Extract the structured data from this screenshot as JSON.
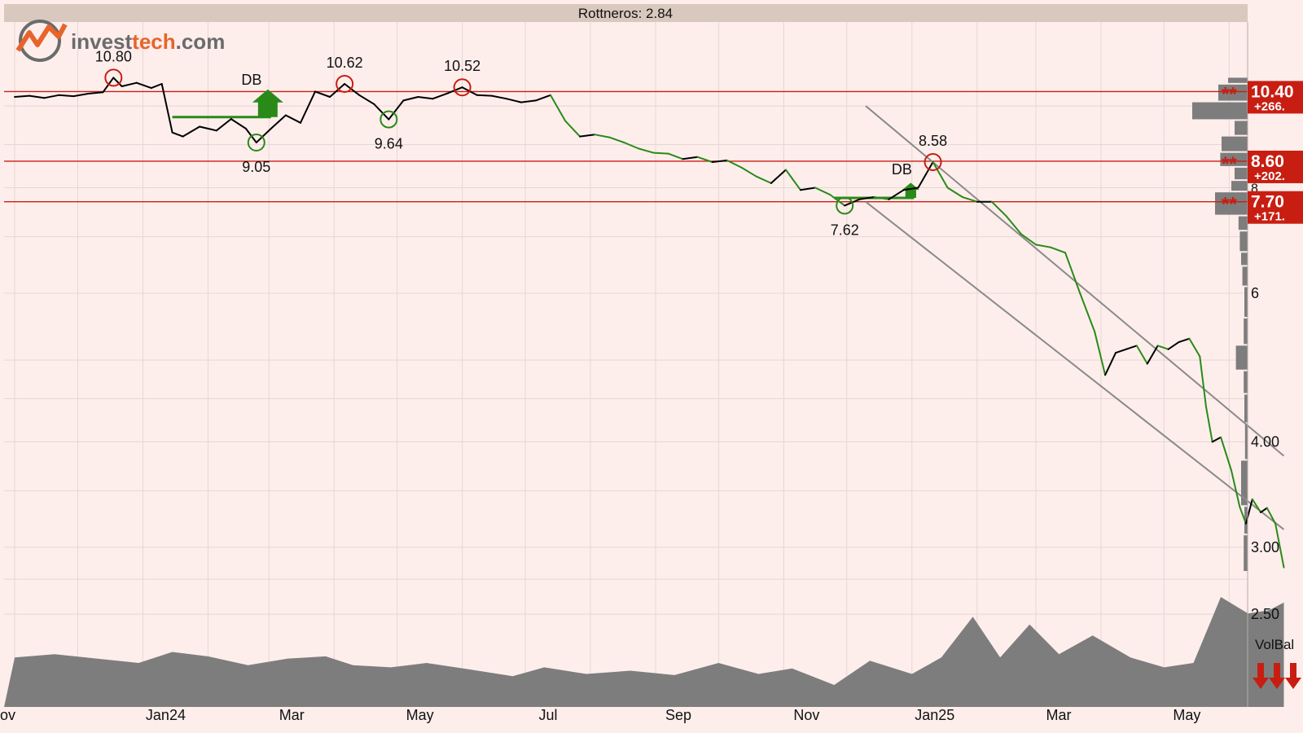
{
  "window": {
    "title": "Rottneros: 2.84",
    "logo_text_a": "invest",
    "logo_text_b": "tech",
    "logo_text_c": ".com",
    "volbal_label": "VolBal"
  },
  "colors": {
    "background": "#fdeeec",
    "title_bar": "#d9c8bd",
    "grid": "#e6d6d4",
    "price_up": "#000000",
    "price_down": "#2a8a18",
    "resistance": "#c81e12",
    "support_green": "#2a8a18",
    "channel": "#8a8a8a",
    "volume_fill": "#7d7d7d",
    "badge_red": "#c81e12",
    "logo_orange": "#e8642a",
    "logo_grey": "#6b6b6b"
  },
  "chart_data": {
    "type": "line",
    "title": "Rottneros: 2.84",
    "y_scale": "log",
    "y_ticks": [
      "6",
      "4.00",
      "3.00",
      "2.50"
    ],
    "y_tick_values": [
      6,
      4,
      3,
      2.5
    ],
    "partial_y_tick": "8",
    "x_ticks": [
      "ov",
      "Jan24",
      "Mar",
      "May",
      "Jul",
      "Sep",
      "Nov",
      "Jan25",
      "Mar",
      "May"
    ],
    "series": [
      {
        "values": [
          [
            "2023-11-01",
            10.25
          ],
          [
            "2023-11-08",
            10.28
          ],
          [
            "2023-11-15",
            10.22
          ],
          [
            "2023-11-22",
            10.3
          ],
          [
            "2023-11-29",
            10.27
          ],
          [
            "2023-12-06",
            10.34
          ],
          [
            "2023-12-13",
            10.38
          ],
          [
            "2023-12-18",
            10.8
          ],
          [
            "2023-12-22",
            10.55
          ],
          [
            "2023-12-29",
            10.65
          ],
          [
            "2024-01-05",
            10.5
          ],
          [
            "2024-01-10",
            10.62
          ],
          [
            "2024-01-15",
            9.3
          ],
          [
            "2024-01-20",
            9.2
          ],
          [
            "2024-01-28",
            9.45
          ],
          [
            "2024-02-05",
            9.35
          ],
          [
            "2024-02-12",
            9.65
          ],
          [
            "2024-02-19",
            9.4
          ],
          [
            "2024-02-24",
            9.05
          ],
          [
            "2024-03-02",
            9.4
          ],
          [
            "2024-03-09",
            9.75
          ],
          [
            "2024-03-16",
            9.55
          ],
          [
            "2024-03-23",
            10.4
          ],
          [
            "2024-03-30",
            10.25
          ],
          [
            "2024-04-06",
            10.62
          ],
          [
            "2024-04-13",
            10.3
          ],
          [
            "2024-04-20",
            10.05
          ],
          [
            "2024-04-27",
            9.64
          ],
          [
            "2024-05-04",
            10.15
          ],
          [
            "2024-05-11",
            10.25
          ],
          [
            "2024-05-18",
            10.2
          ],
          [
            "2024-05-25",
            10.35
          ],
          [
            "2024-06-01",
            10.52
          ],
          [
            "2024-06-08",
            10.3
          ],
          [
            "2024-06-15",
            10.28
          ],
          [
            "2024-06-22",
            10.2
          ],
          [
            "2024-06-29",
            10.1
          ],
          [
            "2024-07-06",
            10.15
          ],
          [
            "2024-07-13",
            10.3
          ],
          [
            "2024-07-20",
            9.6
          ],
          [
            "2024-07-27",
            9.2
          ],
          [
            "2024-08-03",
            9.25
          ],
          [
            "2024-08-10",
            9.18
          ],
          [
            "2024-08-17",
            9.05
          ],
          [
            "2024-08-24",
            8.9
          ],
          [
            "2024-08-31",
            8.8
          ],
          [
            "2024-09-07",
            8.78
          ],
          [
            "2024-09-14",
            8.65
          ],
          [
            "2024-09-21",
            8.7
          ],
          [
            "2024-09-28",
            8.58
          ],
          [
            "2024-10-05",
            8.62
          ],
          [
            "2024-10-12",
            8.45
          ],
          [
            "2024-10-19",
            8.25
          ],
          [
            "2024-10-26",
            8.1
          ],
          [
            "2024-11-02",
            8.4
          ],
          [
            "2024-11-09",
            7.95
          ],
          [
            "2024-11-16",
            8.0
          ],
          [
            "2024-11-23",
            7.85
          ],
          [
            "2024-11-30",
            7.62
          ],
          [
            "2024-12-07",
            7.75
          ],
          [
            "2024-12-14",
            7.8
          ],
          [
            "2024-12-21",
            7.75
          ],
          [
            "2024-12-28",
            7.95
          ],
          [
            "2025-01-04",
            8.0
          ],
          [
            "2025-01-11",
            8.58
          ],
          [
            "2025-01-18",
            8.0
          ],
          [
            "2025-01-25",
            7.8
          ],
          [
            "2025-02-01",
            7.7
          ],
          [
            "2025-02-08",
            7.7
          ],
          [
            "2025-02-15",
            7.4
          ],
          [
            "2025-02-22",
            7.05
          ],
          [
            "2025-03-01",
            6.85
          ],
          [
            "2025-03-08",
            6.8
          ],
          [
            "2025-03-15",
            6.7
          ],
          [
            "2025-03-22",
            6.0
          ],
          [
            "2025-03-29",
            5.4
          ],
          [
            "2025-04-03",
            4.8
          ],
          [
            "2025-04-08",
            5.1
          ],
          [
            "2025-04-13",
            5.15
          ],
          [
            "2025-04-18",
            5.2
          ],
          [
            "2025-04-23",
            4.95
          ],
          [
            "2025-04-28",
            5.2
          ],
          [
            "2025-05-03",
            5.15
          ],
          [
            "2025-05-08",
            5.25
          ],
          [
            "2025-05-13",
            5.3
          ],
          [
            "2025-05-18",
            5.05
          ],
          [
            "2025-05-21",
            4.4
          ],
          [
            "2025-05-24",
            4.0
          ],
          [
            "2025-05-28",
            4.05
          ],
          [
            "2025-06-02",
            3.7
          ],
          [
            "2025-06-06",
            3.35
          ],
          [
            "2025-06-09",
            3.2
          ],
          [
            "2025-06-12",
            3.42
          ],
          [
            "2025-06-16",
            3.3
          ],
          [
            "2025-06-19",
            3.34
          ],
          [
            "2025-06-23",
            3.2
          ],
          [
            "2025-06-27",
            2.84
          ]
        ]
      }
    ],
    "peaks": [
      {
        "date": "2023-12-18",
        "value": 10.8,
        "label": "10.80"
      },
      {
        "date": "2024-04-06",
        "value": 10.62,
        "label": "10.62"
      },
      {
        "date": "2024-06-01",
        "value": 10.52,
        "label": "10.52"
      },
      {
        "date": "2025-01-11",
        "value": 8.58,
        "label": "8.58"
      }
    ],
    "troughs": [
      {
        "date": "2024-02-24",
        "value": 9.05,
        "label": "9.05"
      },
      {
        "date": "2024-04-27",
        "value": 9.64,
        "label": "9.64"
      },
      {
        "date": "2024-11-30",
        "value": 7.62,
        "label": "7.62"
      }
    ],
    "patterns": [
      {
        "label": "DB",
        "start": "2024-01-15",
        "end": "2024-03-02",
        "value": 9.7
      },
      {
        "label": "DB",
        "start": "2024-11-25",
        "end": "2025-01-02",
        "value": 7.78
      }
    ],
    "resistance_levels": [
      {
        "value": 10.4,
        "label": "10.40",
        "change": "+266."
      },
      {
        "value": 8.6,
        "label": "8.60",
        "change": "+202."
      },
      {
        "value": 7.7,
        "label": "7.70",
        "change": "+171."
      }
    ],
    "trend_channel": {
      "upper": [
        [
          "2024-12-10",
          10.0
        ],
        [
          "2025-06-27",
          3.85
        ]
      ],
      "lower": [
        [
          "2024-12-10",
          7.7
        ],
        [
          "2025-06-27",
          3.15
        ]
      ]
    },
    "volume_balance": {
      "label": "VolBal",
      "values": [
        [
          "2023-11-01",
          0.45
        ],
        [
          "2023-11-20",
          0.48
        ],
        [
          "2023-12-10",
          0.44
        ],
        [
          "2023-12-30",
          0.4
        ],
        [
          "2024-01-15",
          0.5
        ],
        [
          "2024-02-01",
          0.46
        ],
        [
          "2024-02-20",
          0.38
        ],
        [
          "2024-03-10",
          0.44
        ],
        [
          "2024-03-28",
          0.46
        ],
        [
          "2024-04-10",
          0.38
        ],
        [
          "2024-04-28",
          0.36
        ],
        [
          "2024-05-15",
          0.4
        ],
        [
          "2024-06-05",
          0.34
        ],
        [
          "2024-06-25",
          0.28
        ],
        [
          "2024-07-10",
          0.36
        ],
        [
          "2024-07-30",
          0.3
        ],
        [
          "2024-08-20",
          0.33
        ],
        [
          "2024-09-10",
          0.29
        ],
        [
          "2024-10-01",
          0.4
        ],
        [
          "2024-10-20",
          0.3
        ],
        [
          "2024-11-05",
          0.35
        ],
        [
          "2024-11-25",
          0.2
        ],
        [
          "2024-12-12",
          0.42
        ],
        [
          "2025-01-01",
          0.3
        ],
        [
          "2025-01-15",
          0.45
        ],
        [
          "2025-01-30",
          0.82
        ],
        [
          "2025-02-12",
          0.45
        ],
        [
          "2025-02-26",
          0.75
        ],
        [
          "2025-03-12",
          0.48
        ],
        [
          "2025-03-28",
          0.65
        ],
        [
          "2025-04-15",
          0.45
        ],
        [
          "2025-05-01",
          0.36
        ],
        [
          "2025-05-15",
          0.4
        ],
        [
          "2025-05-28",
          1.0
        ],
        [
          "2025-06-10",
          0.85
        ],
        [
          "2025-06-20",
          0.88
        ],
        [
          "2025-06-27",
          0.95
        ]
      ]
    },
    "volume_profile": [
      {
        "from": 10.6,
        "to": 10.8,
        "weight": 0.3
      },
      {
        "from": 10.1,
        "to": 10.6,
        "weight": 0.45
      },
      {
        "from": 9.6,
        "to": 10.1,
        "weight": 0.85
      },
      {
        "from": 9.2,
        "to": 9.6,
        "weight": 0.2
      },
      {
        "from": 8.8,
        "to": 9.2,
        "weight": 0.4
      },
      {
        "from": 8.45,
        "to": 8.8,
        "weight": 0.42
      },
      {
        "from": 8.15,
        "to": 8.45,
        "weight": 0.2
      },
      {
        "from": 7.9,
        "to": 8.15,
        "weight": 0.25
      },
      {
        "from": 7.4,
        "to": 7.9,
        "weight": 0.5
      },
      {
        "from": 7.1,
        "to": 7.4,
        "weight": 0.14
      },
      {
        "from": 6.7,
        "to": 7.1,
        "weight": 0.12
      },
      {
        "from": 6.45,
        "to": 6.7,
        "weight": 0.1
      },
      {
        "from": 6.1,
        "to": 6.45,
        "weight": 0.08
      },
      {
        "from": 5.6,
        "to": 6.1,
        "weight": 0.05
      },
      {
        "from": 5.2,
        "to": 5.6,
        "weight": 0.06
      },
      {
        "from": 4.85,
        "to": 5.2,
        "weight": 0.18
      },
      {
        "from": 4.55,
        "to": 4.85,
        "weight": 0.06
      },
      {
        "from": 4.2,
        "to": 4.55,
        "weight": 0.05
      },
      {
        "from": 3.8,
        "to": 4.2,
        "weight": 0.04
      },
      {
        "from": 3.35,
        "to": 3.8,
        "weight": 0.1
      },
      {
        "from": 3.1,
        "to": 3.35,
        "weight": 0.05
      },
      {
        "from": 2.8,
        "to": 3.1,
        "weight": 0.06
      }
    ],
    "grid": true
  }
}
